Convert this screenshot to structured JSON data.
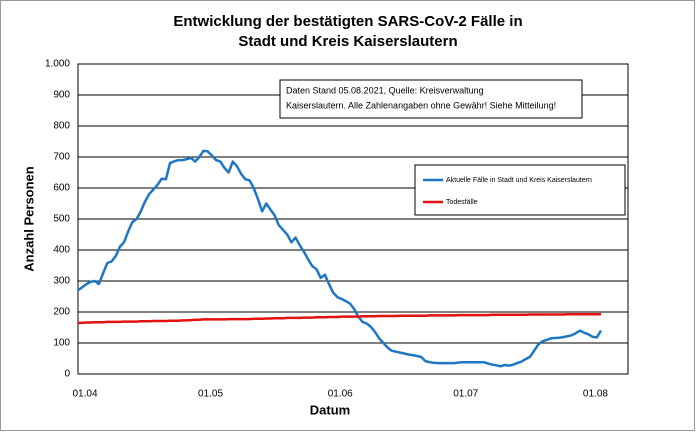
{
  "chart_data": {
    "type": "line",
    "title": [
      "Entwicklung der bestätigten SARS-CoV-2 Fälle in",
      "Stadt und Kreis Kaiserslautern"
    ],
    "x_label": "Datum",
    "y_label": "Anzahl Personen",
    "annotation": [
      "Daten Stand 05.08.2021, Quelle: Kreisverwaltung",
      "Kaiserslautern. Alle Zahlenangaben ohne Gewähr! Siehe Mitteilung!"
    ],
    "categories": [
      "01.04",
      null,
      null,
      null,
      null,
      null,
      null,
      null,
      null,
      null,
      null,
      null,
      null,
      null,
      null,
      null,
      null,
      null,
      null,
      null,
      null,
      null,
      null,
      null,
      null,
      null,
      null,
      null,
      null,
      null,
      "01.05",
      null,
      null,
      null,
      null,
      null,
      null,
      null,
      null,
      null,
      null,
      null,
      null,
      null,
      null,
      null,
      null,
      null,
      null,
      null,
      null,
      null,
      null,
      null,
      null,
      null,
      null,
      null,
      null,
      null,
      null,
      "01.06",
      null,
      null,
      null,
      null,
      null,
      null,
      null,
      null,
      null,
      null,
      null,
      null,
      null,
      null,
      null,
      null,
      null,
      null,
      null,
      null,
      null,
      null,
      null,
      null,
      null,
      null,
      null,
      null,
      null,
      "01.07",
      null,
      null,
      null,
      null,
      null,
      null,
      null,
      null,
      null,
      null,
      null,
      null,
      null,
      null,
      null,
      null,
      null,
      null,
      null,
      null,
      null,
      null,
      null,
      null,
      null,
      null,
      null,
      null,
      null,
      null,
      "01.08",
      null,
      null,
      null
    ],
    "series": [
      {
        "name": "Aktuelle Fälle in Stadt und Kreis Kaiserslautern",
        "color": "#1f77c4",
        "values": [
          270,
          280,
          290,
          297,
          300,
          290,
          325,
          358,
          363,
          380,
          410,
          425,
          460,
          490,
          500,
          525,
          555,
          580,
          595,
          610,
          630,
          628,
          680,
          686,
          690,
          690,
          693,
          697,
          685,
          700,
          720,
          718,
          705,
          690,
          685,
          665,
          650,
          685,
          670,
          645,
          628,
          625,
          600,
          565,
          525,
          550,
          530,
          512,
          480,
          465,
          450,
          425,
          440,
          415,
          395,
          370,
          348,
          338,
          310,
          320,
          290,
          262,
          248,
          242,
          235,
          227,
          210,
          185,
          168,
          163,
          152,
          135,
          115,
          100,
          85,
          75,
          72,
          69,
          66,
          63,
          61,
          58,
          55,
          42,
          38,
          36,
          35,
          35,
          35,
          35,
          35,
          37,
          38,
          38,
          38,
          38,
          38,
          38,
          34,
          30,
          28,
          25,
          29,
          27,
          30,
          35,
          40,
          48,
          55,
          75,
          95,
          105,
          110,
          115,
          116,
          117,
          119,
          122,
          125,
          132,
          140,
          133,
          128,
          120,
          118,
          140
        ]
      },
      {
        "name": "Todesfälle",
        "color": "#e3110f",
        "values": [
          165,
          165,
          166,
          166,
          167,
          167,
          167,
          168,
          168,
          168,
          168,
          169,
          169,
          169,
          169,
          170,
          170,
          170,
          171,
          171,
          171,
          171,
          172,
          172,
          172,
          173,
          173,
          174,
          175,
          175,
          176,
          176,
          176,
          176,
          176,
          176,
          177,
          177,
          177,
          177,
          177,
          177,
          178,
          178,
          178,
          179,
          179,
          180,
          180,
          180,
          181,
          181,
          181,
          181,
          182,
          182,
          182,
          183,
          183,
          183,
          184,
          184,
          184,
          185,
          185,
          185,
          185,
          185,
          186,
          186,
          186,
          186,
          187,
          187,
          187,
          187,
          187,
          188,
          188,
          188,
          188,
          188,
          188,
          188,
          189,
          189,
          189,
          189,
          189,
          189,
          189,
          190,
          190,
          190,
          190,
          190,
          190,
          190,
          190,
          191,
          191,
          191,
          191,
          191,
          191,
          191,
          191,
          191,
          192,
          192,
          192,
          192,
          192,
          192,
          192,
          192,
          192,
          193,
          193,
          193,
          193,
          193,
          193,
          193,
          193,
          193
        ]
      }
    ],
    "ylim": [
      0,
      1000
    ],
    "yticks": [
      0,
      100,
      200,
      300,
      400,
      500,
      600,
      700,
      800,
      900,
      {
        "value": 1000,
        "label": "1.000"
      }
    ],
    "grid": true
  }
}
